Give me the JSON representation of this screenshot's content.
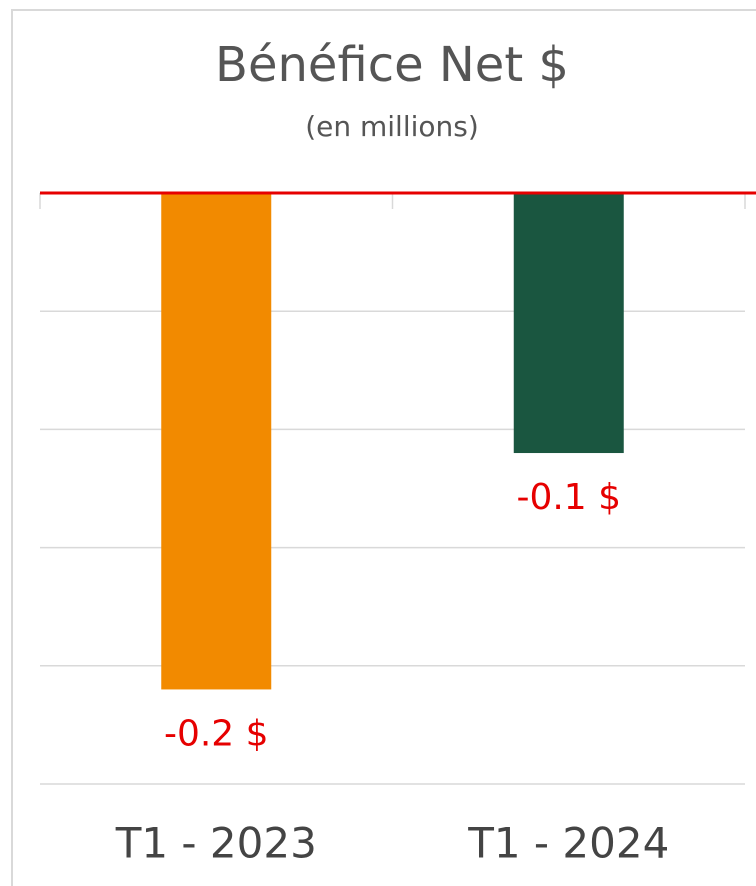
{
  "chart_data": {
    "type": "bar",
    "title": "Bénéfice Net $",
    "subtitle": "(en millions)",
    "categories": [
      "T1 - 2023",
      "T1 - 2024"
    ],
    "values": [
      -0.21,
      -0.11
    ],
    "value_labels": [
      "-0.2 $",
      "-0.1 $"
    ],
    "colors": [
      "#f28a00",
      "#1a5640"
    ],
    "ylim": [
      -0.25,
      0
    ],
    "yticks": [
      0,
      -0.05,
      -0.1,
      -0.15,
      -0.2,
      -0.25
    ],
    "grid": true
  }
}
